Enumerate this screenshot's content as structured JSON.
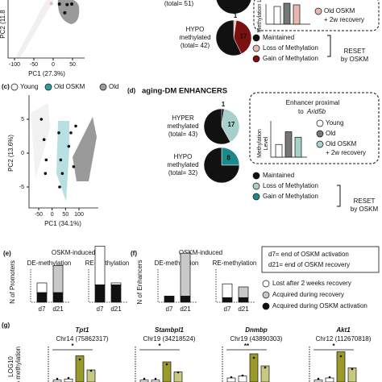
{
  "top": {
    "pca": {
      "x_label": "PC1 (27.3%)",
      "y_label": "PC2 (11.8",
      "xlim": [
        -115,
        80
      ],
      "xticks": [
        -100,
        -50,
        0,
        50
      ],
      "ylim": [
        0,
        10
      ],
      "points": {
        "x": [
          16,
          36,
          48,
          30,
          -5
        ],
        "y": [
          9.3,
          9.2,
          9.3,
          7.8,
          9.4
        ],
        "colors": [
          "#111",
          "#111",
          "#111",
          "#111",
          "#e8b8b0"
        ]
      }
    },
    "hyper_total": "(total= 51)",
    "hypo": {
      "label": [
        "HYPO",
        "methylated",
        "(total= 42)"
      ],
      "values": [
        1,
        17,
        24
      ],
      "colors": [
        "#e8b8b0",
        "#7a1010",
        "#111"
      ]
    },
    "legend": [
      "Maintained",
      "Loss of Methylation",
      "Gain of Methylation"
    ],
    "legend_colors": [
      "#111",
      "#e8b8b0",
      "#7a1010"
    ],
    "reset": [
      "RESET",
      "by OSKM"
    ],
    "inset": {
      "y_label": "Methylation Leve",
      "legend": [
        "Old OSKM",
        "+ 2w recovery"
      ]
    }
  },
  "c": {
    "tag": "(c)",
    "groups": [
      "Young",
      "Old OSKM",
      "Old"
    ],
    "group_colors": [
      "#f2f2f2",
      "#2a9d9d",
      "#9a9a9a"
    ],
    "x_label": "PC1 (34.1%)",
    "y_label": "PC2 (13.6%)",
    "xlim": [
      -55,
      100
    ],
    "xticks": [
      -50,
      0,
      50,
      100
    ],
    "ylim": [
      -7,
      8
    ],
    "yticks": [
      5,
      0,
      -5
    ],
    "points": {
      "x": [
        -40,
        -30,
        -22,
        -25,
        25,
        32,
        38,
        28,
        62,
        70,
        80,
        88
      ],
      "y": [
        5,
        2,
        -1,
        -3,
        3,
        -1,
        -3,
        -5,
        1,
        3,
        -2,
        4
      ],
      "group": [
        0,
        0,
        0,
        0,
        1,
        1,
        1,
        1,
        2,
        2,
        2,
        2
      ]
    }
  },
  "d": {
    "tag": "(d)",
    "title": "aging-DM ENHANCERS",
    "hyper": {
      "label": [
        "HYPER",
        "methylated",
        "(total= 43)"
      ],
      "values": [
        1,
        17,
        25
      ],
      "colors": [
        "#111",
        "#a8cfcc",
        "#111"
      ]
    },
    "hypo": {
      "label": [
        "HYPO",
        "methylated",
        "(total= 32)"
      ],
      "values": [
        8,
        24
      ],
      "colors": [
        "#1a8a8a",
        "#111"
      ]
    },
    "inset": {
      "title": [
        "Enhancer proximal",
        "to "
      ],
      "gene": "Arid5b",
      "y_label": [
        "Methylation",
        "Level"
      ],
      "legend": [
        "Young",
        "Old",
        "Old OSKM",
        "+ 2w recovery"
      ],
      "values": [
        0.35,
        0.7,
        0.55
      ],
      "colors": [
        "#fff",
        "#777",
        "#a8cfcc"
      ]
    },
    "legend": [
      "Maintained",
      "Loss of Methylation",
      "Gain of Methylation"
    ],
    "legend_colors": [
      "#111",
      "#a8cfcc",
      "#1a8a8a"
    ],
    "reset": [
      "RESET",
      "by OSKM"
    ]
  },
  "e": {
    "tag": "(e)",
    "title": "OSKM-induced",
    "y_label": "N of Promoters",
    "groups": [
      "DE-methylation",
      "RE-methylation"
    ],
    "days": [
      "d7",
      "d21"
    ],
    "bars": [
      [
        [
          5,
          0,
          5
        ],
        [
          5,
          14,
          0
        ]
      ],
      [
        [
          9,
          0,
          20
        ],
        [
          9,
          0,
          1
        ]
      ]
    ]
  },
  "f": {
    "tag": "(f)",
    "title": "OSKM-induced",
    "y_label": "N of Enhancers",
    "groups": [
      "DE-methylation",
      "RE-methylation"
    ],
    "days": [
      "d7",
      "d21"
    ],
    "bars": [
      [
        [
          4,
          0,
          0
        ],
        [
          4,
          28,
          0
        ]
      ],
      [
        [
          3,
          0,
          9
        ],
        [
          3,
          7,
          0
        ]
      ]
    ]
  },
  "notes": [
    "d7= end of OSKM activation",
    "d21= end of OSKM recovery"
  ],
  "legend_e": [
    "Lost after 2 weeks recovery",
    "Acquired during recovery",
    "Acquired during OSKM activation"
  ],
  "legend_e_colors": [
    "#fff",
    "#c8c8c8",
    "#111"
  ],
  "g": {
    "tag": "(g)",
    "y_label": [
      "LOG10",
      "% methylation"
    ],
    "genes": [
      {
        "name": "Tpt1",
        "chr": "Chr14 (75862317)",
        "values": [
          0.1,
          0.15,
          1.3,
          0.6
        ],
        "stars": "*"
      },
      {
        "name": "Stambpl1",
        "chr": "Chr19 (34218524)",
        "values": [
          0.1,
          0.1,
          1.0,
          0.5
        ],
        "stars": "*"
      },
      {
        "name": "Dnmbp",
        "chr": "Chr19 (43890303)",
        "values": [
          0.2,
          0.3,
          1.4,
          0.8
        ],
        "stars": "**"
      },
      {
        "name": "Akt1",
        "chr": "Chr12 (112670818)",
        "values": [
          0.1,
          0.2,
          1.5,
          0.7
        ],
        "stars": "*"
      }
    ],
    "colors": [
      "#fff",
      "#fff",
      "#9a9a2a",
      "#c8c880"
    ]
  }
}
